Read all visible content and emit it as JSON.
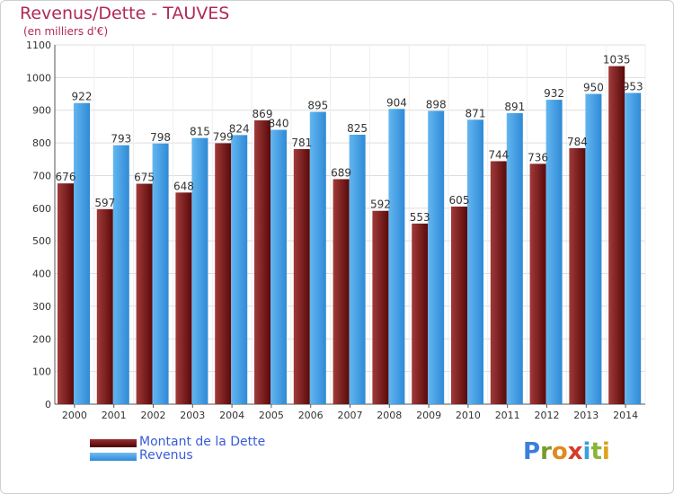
{
  "title": "Revenus/Dette - TAUVES",
  "subtitle": "(en milliers d'€)",
  "legend": [
    {
      "label": "Montant de la Dette",
      "color": "#6e1212"
    },
    {
      "label": "Revenus",
      "color": "#4aa3e8"
    }
  ],
  "logo_text": "Proxiti",
  "colors": {
    "dette_dark": "#5a0a0a",
    "dette_light": "#a13a3a",
    "revenus_dark": "#2f8ad6",
    "revenus_light": "#63b6f0",
    "title": "#b0285a"
  },
  "chart_data": {
    "type": "bar",
    "title": "Revenus/Dette - TAUVES",
    "subtitle": "(en milliers d'€)",
    "categories": [
      "2000",
      "2001",
      "2002",
      "2003",
      "2004",
      "2005",
      "2006",
      "2007",
      "2008",
      "2009",
      "2010",
      "2011",
      "2012",
      "2013",
      "2014"
    ],
    "series": [
      {
        "name": "Montant de la Dette",
        "values": [
          676,
          597,
          675,
          648,
          799,
          869,
          781,
          689,
          592,
          553,
          605,
          744,
          736,
          784,
          1035
        ]
      },
      {
        "name": "Revenus",
        "values": [
          922,
          793,
          798,
          815,
          824,
          840,
          895,
          825,
          904,
          898,
          871,
          891,
          932,
          950,
          953
        ]
      }
    ],
    "ylim": [
      0,
      1100
    ],
    "yticks": [
      0,
      100,
      200,
      300,
      400,
      500,
      600,
      700,
      800,
      900,
      1000,
      1100
    ],
    "grid": true,
    "legend_position": "bottom-left"
  }
}
